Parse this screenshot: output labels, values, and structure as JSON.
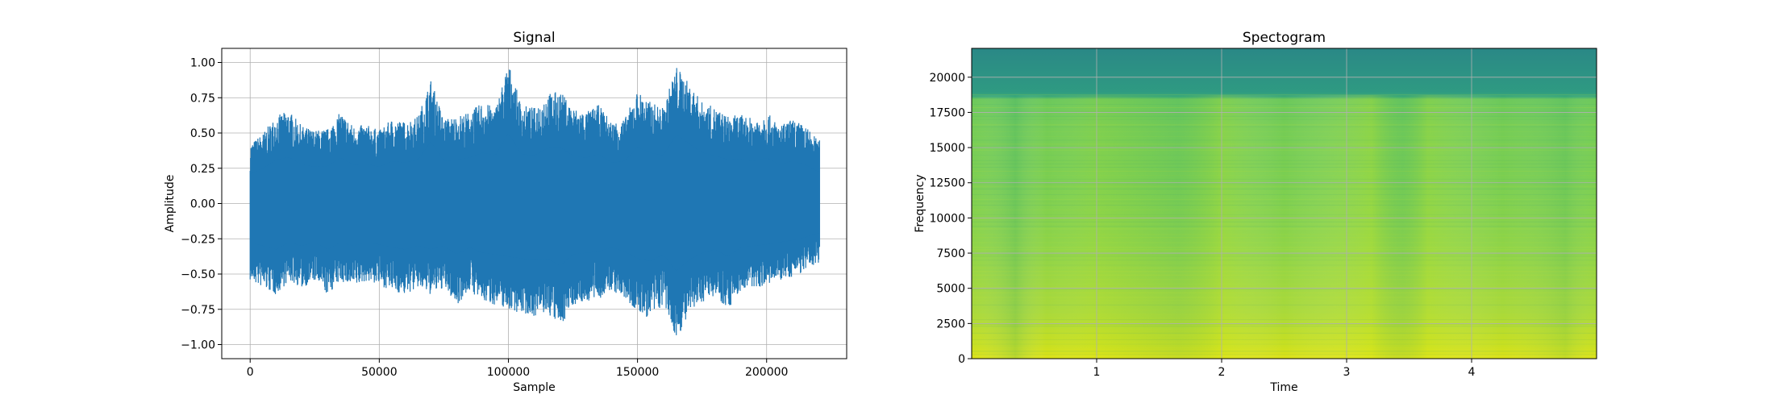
{
  "chart_data": [
    {
      "type": "line",
      "title": "Signal",
      "xlabel": "Sample",
      "ylabel": "Amplitude",
      "xlim": [
        -11000,
        231000
      ],
      "ylim": [
        -1.1,
        1.1
      ],
      "xticks": [
        0,
        50000,
        100000,
        150000,
        200000
      ],
      "xtick_labels": [
        "0",
        "50000",
        "100000",
        "150000",
        "200000"
      ],
      "yticks": [
        1.0,
        0.75,
        0.5,
        0.25,
        0.0,
        -0.25,
        -0.5,
        -0.75,
        -1.0
      ],
      "ytick_labels": [
        "1.00",
        "0.75",
        "0.50",
        "0.25",
        "0.00",
        "−0.25",
        "−0.50",
        "−0.75",
        "−1.00"
      ],
      "grid": true,
      "color": "#1f77b4",
      "sample_count": 220500,
      "x_envelope": [
        0,
        5000,
        10000,
        15000,
        20000,
        25000,
        30000,
        35000,
        40000,
        45000,
        50000,
        55000,
        60000,
        65000,
        70000,
        75000,
        80000,
        85000,
        90000,
        95000,
        100000,
        105000,
        110000,
        115000,
        120000,
        125000,
        130000,
        135000,
        140000,
        145000,
        150000,
        155000,
        160000,
        165000,
        170000,
        175000,
        180000,
        185000,
        190000,
        195000,
        200000,
        205000,
        210000,
        215000,
        220000
      ],
      "upper_envelope": [
        0.42,
        0.5,
        0.62,
        0.66,
        0.55,
        0.52,
        0.53,
        0.65,
        0.55,
        0.56,
        0.52,
        0.6,
        0.58,
        0.62,
        0.88,
        0.6,
        0.62,
        0.65,
        0.72,
        0.68,
        1.0,
        0.7,
        0.68,
        0.78,
        0.8,
        0.68,
        0.65,
        0.7,
        0.58,
        0.6,
        0.8,
        0.72,
        0.68,
        0.98,
        0.85,
        0.72,
        0.68,
        0.62,
        0.63,
        0.6,
        0.65,
        0.55,
        0.6,
        0.55,
        0.45
      ],
      "lower_envelope": [
        -0.55,
        -0.6,
        -0.65,
        -0.55,
        -0.6,
        -0.55,
        -0.65,
        -0.55,
        -0.6,
        -0.55,
        -0.58,
        -0.62,
        -0.65,
        -0.6,
        -0.65,
        -0.6,
        -0.72,
        -0.62,
        -0.7,
        -0.72,
        -0.75,
        -0.78,
        -0.8,
        -0.78,
        -0.88,
        -0.72,
        -0.7,
        -0.68,
        -0.62,
        -0.68,
        -0.78,
        -0.82,
        -0.72,
        -0.96,
        -0.8,
        -0.7,
        -0.65,
        -0.75,
        -0.62,
        -0.6,
        -0.58,
        -0.55,
        -0.52,
        -0.48,
        -0.42
      ]
    },
    {
      "type": "heatmap",
      "title": "Spectogram",
      "xlabel": "Time",
      "ylabel": "Frequency",
      "xlim": [
        0.0,
        5.0
      ],
      "ylim": [
        0,
        22050
      ],
      "xticks": [
        1,
        2,
        3,
        4
      ],
      "xtick_labels": [
        "1",
        "2",
        "3",
        "4"
      ],
      "yticks": [
        0,
        2500,
        5000,
        7500,
        10000,
        12500,
        15000,
        17500,
        20000
      ],
      "ytick_labels": [
        "0",
        "2500",
        "5000",
        "7500",
        "10000",
        "12500",
        "15000",
        "17500",
        "20000"
      ],
      "grid": true,
      "colormap": "viridis",
      "rolloff_frequency": 18800,
      "colors": {
        "high_band": "#2a8a86",
        "mid_band": "#6fcc57",
        "low_band": "#c7e020",
        "bright_peak": "#dce319"
      }
    }
  ]
}
